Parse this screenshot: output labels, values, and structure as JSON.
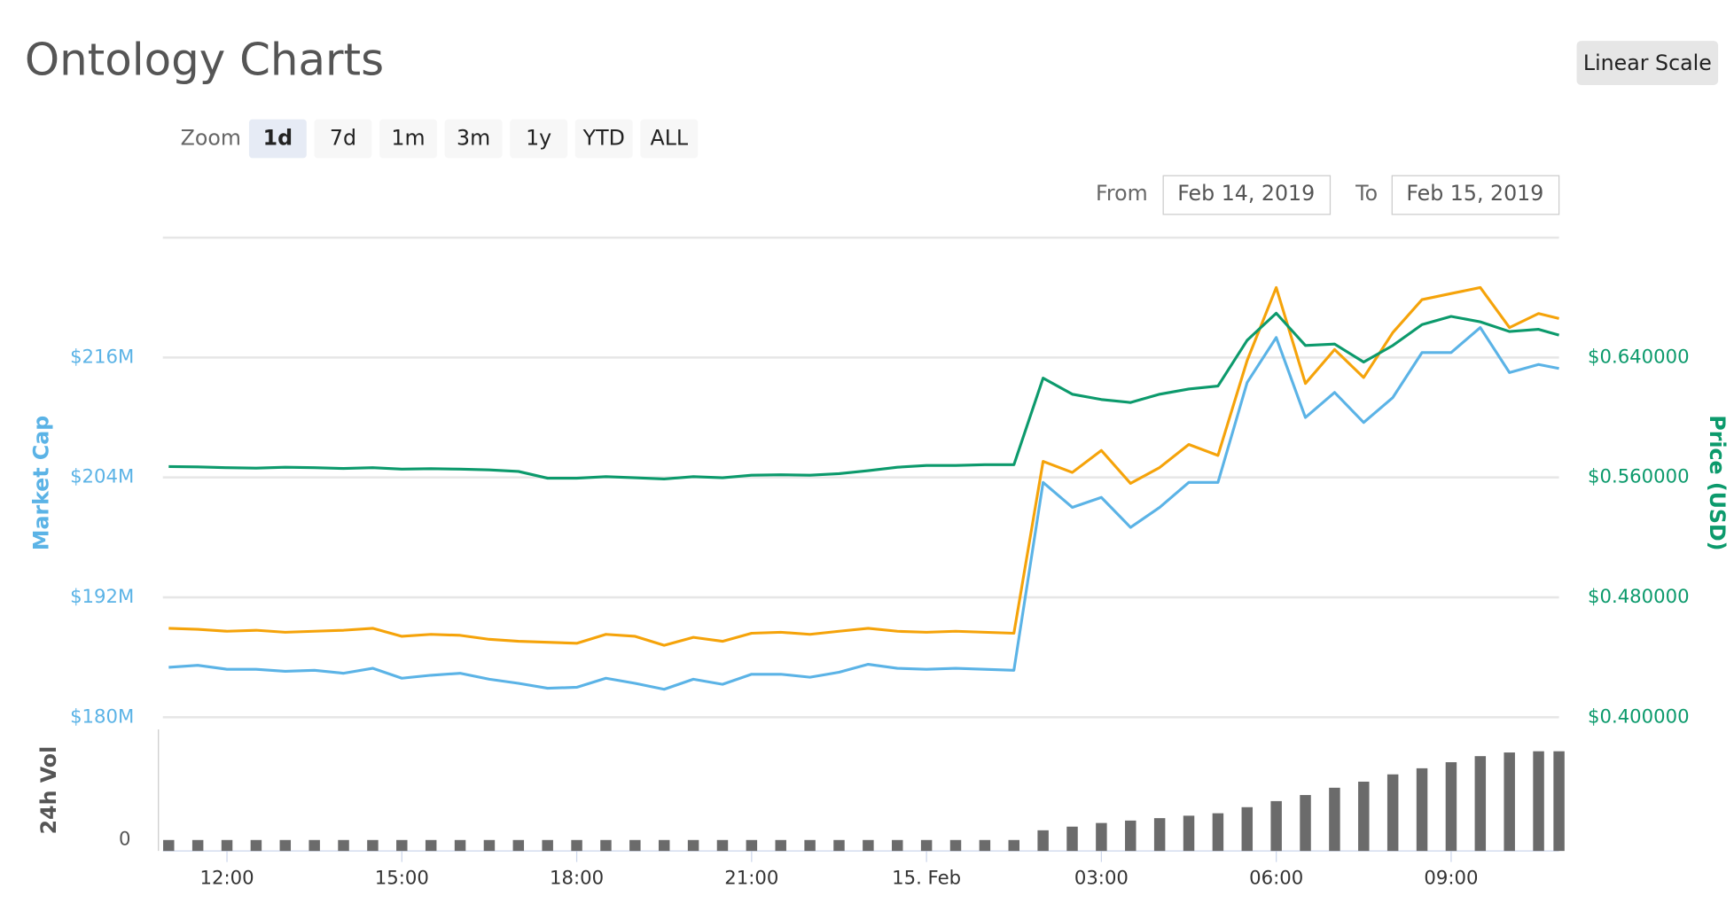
{
  "header": {
    "title": "Ontology Charts",
    "scale_button": "Linear Scale"
  },
  "zoom": {
    "label": "Zoom",
    "options": [
      "1d",
      "7d",
      "1m",
      "3m",
      "1y",
      "YTD",
      "ALL"
    ],
    "selected": "1d"
  },
  "range": {
    "from_label": "From",
    "from": "Feb 14, 2019",
    "to_label": "To",
    "to": "Feb 15, 2019"
  },
  "chart_data": {
    "type": "line",
    "x": [
      11,
      11.5,
      12,
      12.5,
      13,
      13.5,
      14,
      14.5,
      15,
      15.5,
      16,
      16.5,
      17,
      17.5,
      18,
      18.5,
      19,
      19.5,
      20,
      20.5,
      21,
      21.5,
      22,
      22.5,
      23,
      23.5,
      24,
      24.5,
      25,
      25.5,
      26,
      26.5,
      27,
      27.5,
      28,
      28.5,
      29,
      29.5,
      30,
      30.5,
      31,
      31.5,
      32,
      32.5,
      33,
      33.5,
      34,
      34.5,
      34.85
    ],
    "xlim": [
      10.9,
      34.85
    ],
    "xticks": [
      {
        "value": 12,
        "label": "12:00"
      },
      {
        "value": 15,
        "label": "15:00"
      },
      {
        "value": 18,
        "label": "18:00"
      },
      {
        "value": 21,
        "label": "21:00"
      },
      {
        "value": 24,
        "label": "15. Feb"
      },
      {
        "value": 27,
        "label": "03:00"
      },
      {
        "value": 30,
        "label": "06:00"
      },
      {
        "value": 33,
        "label": "09:00"
      }
    ],
    "ylabel": "Market Cap",
    "ylim": [
      180,
      228
    ],
    "yticks": [
      {
        "value": 180,
        "label": "$180M"
      },
      {
        "value": 192,
        "label": "$192M"
      },
      {
        "value": 204,
        "label": "$204M"
      },
      {
        "value": 216,
        "label": "$216M"
      }
    ],
    "y2label": "Price (USD)",
    "y2lim": [
      0.4,
      0.72
    ],
    "y2ticks": [
      {
        "value": 0.4,
        "label": "$0.400000"
      },
      {
        "value": 0.48,
        "label": "$0.480000"
      },
      {
        "value": 0.56,
        "label": "$0.560000"
      },
      {
        "value": 0.64,
        "label": "$0.640000"
      }
    ],
    "grid": true,
    "series": [
      {
        "color": "#f5a30a",
        "axis": "y",
        "values": [
          188.9,
          188.8,
          188.6,
          188.7,
          188.5,
          188.6,
          188.7,
          188.9,
          188.1,
          188.3,
          188.2,
          187.8,
          187.6,
          187.5,
          187.4,
          188.3,
          188.1,
          187.2,
          188.0,
          187.6,
          188.4,
          188.5,
          188.3,
          188.6,
          188.9,
          188.6,
          188.5,
          188.6,
          188.5,
          188.4,
          205.6,
          204.5,
          206.7,
          203.4,
          205.0,
          207.3,
          206.2,
          215.7,
          223.0,
          213.4,
          216.8,
          214.0,
          218.5,
          221.8,
          222.4,
          223.0,
          219.0,
          220.4,
          219.9
        ]
      },
      {
        "color": "#5bb3e6",
        "axis": "y",
        "values": [
          185.0,
          185.2,
          184.8,
          184.8,
          184.6,
          184.7,
          184.4,
          184.9,
          183.9,
          184.2,
          184.4,
          183.8,
          183.4,
          182.9,
          183.0,
          183.9,
          183.4,
          182.8,
          183.8,
          183.3,
          184.3,
          184.3,
          184.0,
          184.5,
          185.3,
          184.9,
          184.8,
          184.9,
          184.8,
          184.7,
          203.5,
          201.0,
          202.0,
          199.0,
          201.0,
          203.5,
          203.5,
          213.5,
          218.0,
          210.0,
          212.5,
          209.5,
          212.0,
          216.5,
          216.5,
          219.0,
          214.5,
          215.3,
          214.9
        ]
      },
      {
        "color": "#0c9a6c",
        "axis": "y2",
        "values": [
          0.5672,
          0.567,
          0.5665,
          0.5662,
          0.5668,
          0.5665,
          0.566,
          0.5665,
          0.5655,
          0.5658,
          0.5655,
          0.565,
          0.564,
          0.5595,
          0.5595,
          0.5605,
          0.5598,
          0.559,
          0.5605,
          0.5598,
          0.5615,
          0.5618,
          0.5615,
          0.5625,
          0.5645,
          0.5668,
          0.568,
          0.568,
          0.5685,
          0.5685,
          0.6263,
          0.6155,
          0.612,
          0.61,
          0.6155,
          0.619,
          0.621,
          0.6515,
          0.6696,
          0.648,
          0.649,
          0.637,
          0.648,
          0.662,
          0.6674,
          0.6638,
          0.6573,
          0.6588,
          0.655
        ]
      }
    ],
    "volume": {
      "label": "24h Vol",
      "color": "#6b6b6b",
      "ylim": [
        0,
        100
      ],
      "yticks": [
        0
      ],
      "values": [
        9,
        9,
        9,
        9,
        9,
        9,
        9,
        9,
        9,
        9,
        9,
        9,
        9,
        9,
        9,
        9,
        9,
        9,
        9,
        9,
        9,
        9,
        9,
        9,
        9,
        9,
        9,
        9,
        9,
        9,
        17,
        20,
        23,
        25,
        27,
        29,
        31,
        36,
        41,
        46,
        52,
        57,
        63,
        68,
        73,
        78,
        81,
        82,
        82
      ]
    }
  }
}
